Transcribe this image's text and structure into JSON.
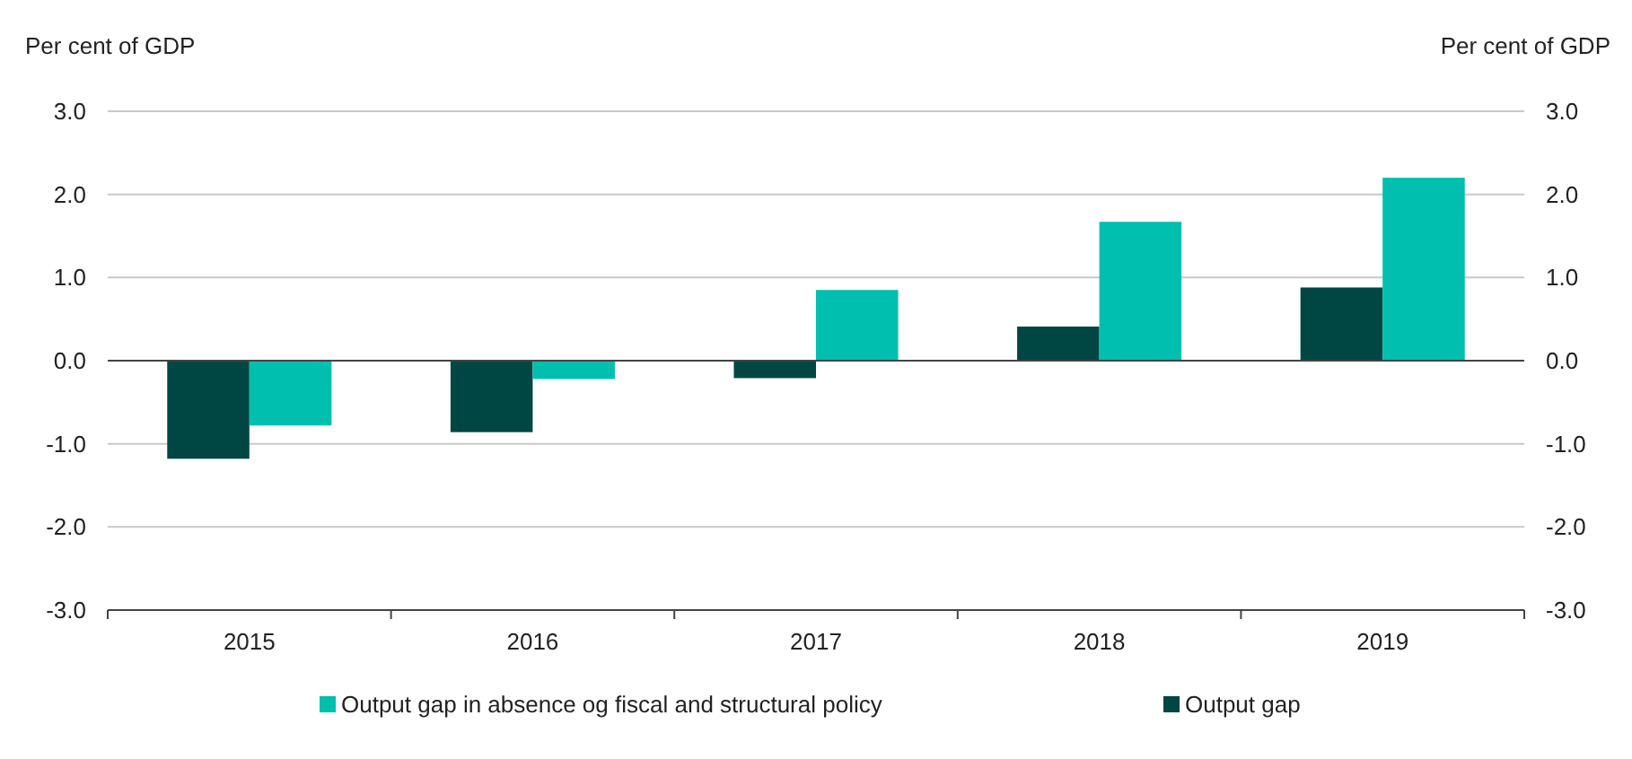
{
  "chart_data": {
    "type": "bar",
    "ylabel": "Per cent of GDP",
    "y2label": "Per cent of GDP",
    "categories": [
      "2015",
      "2016",
      "2017",
      "2018",
      "2019"
    ],
    "series": [
      {
        "name": "Output gap",
        "color": "#004743",
        "values": [
          -1.18,
          -0.86,
          -0.21,
          0.41,
          0.88
        ]
      },
      {
        "name": "Output gap in absence og fiscal and structural policy",
        "color": "#00bfae",
        "values": [
          -0.78,
          -0.22,
          0.85,
          1.67,
          2.2
        ]
      }
    ],
    "ylim": [
      -3,
      3
    ],
    "yticks": [
      {
        "value": -3,
        "label": "-3.0"
      },
      {
        "value": -2,
        "label": "-2.0"
      },
      {
        "value": -1,
        "label": "-1.0"
      },
      {
        "value": 0,
        "label": "0.0"
      },
      {
        "value": 1,
        "label": "1.0"
      },
      {
        "value": 2,
        "label": "2.0"
      },
      {
        "value": 3,
        "label": "3.0"
      }
    ],
    "y2lim": [
      -3,
      3
    ],
    "y2ticks": [
      {
        "value": -3,
        "label": "-3.0"
      },
      {
        "value": -2,
        "label": "-2.0"
      },
      {
        "value": -1,
        "label": "-1.0"
      },
      {
        "value": 0,
        "label": "0.0"
      },
      {
        "value": 1,
        "label": "1.0"
      },
      {
        "value": 2,
        "label": "2.0"
      },
      {
        "value": 3,
        "label": "3.0"
      }
    ],
    "grid": "y",
    "legend": "bottom"
  }
}
